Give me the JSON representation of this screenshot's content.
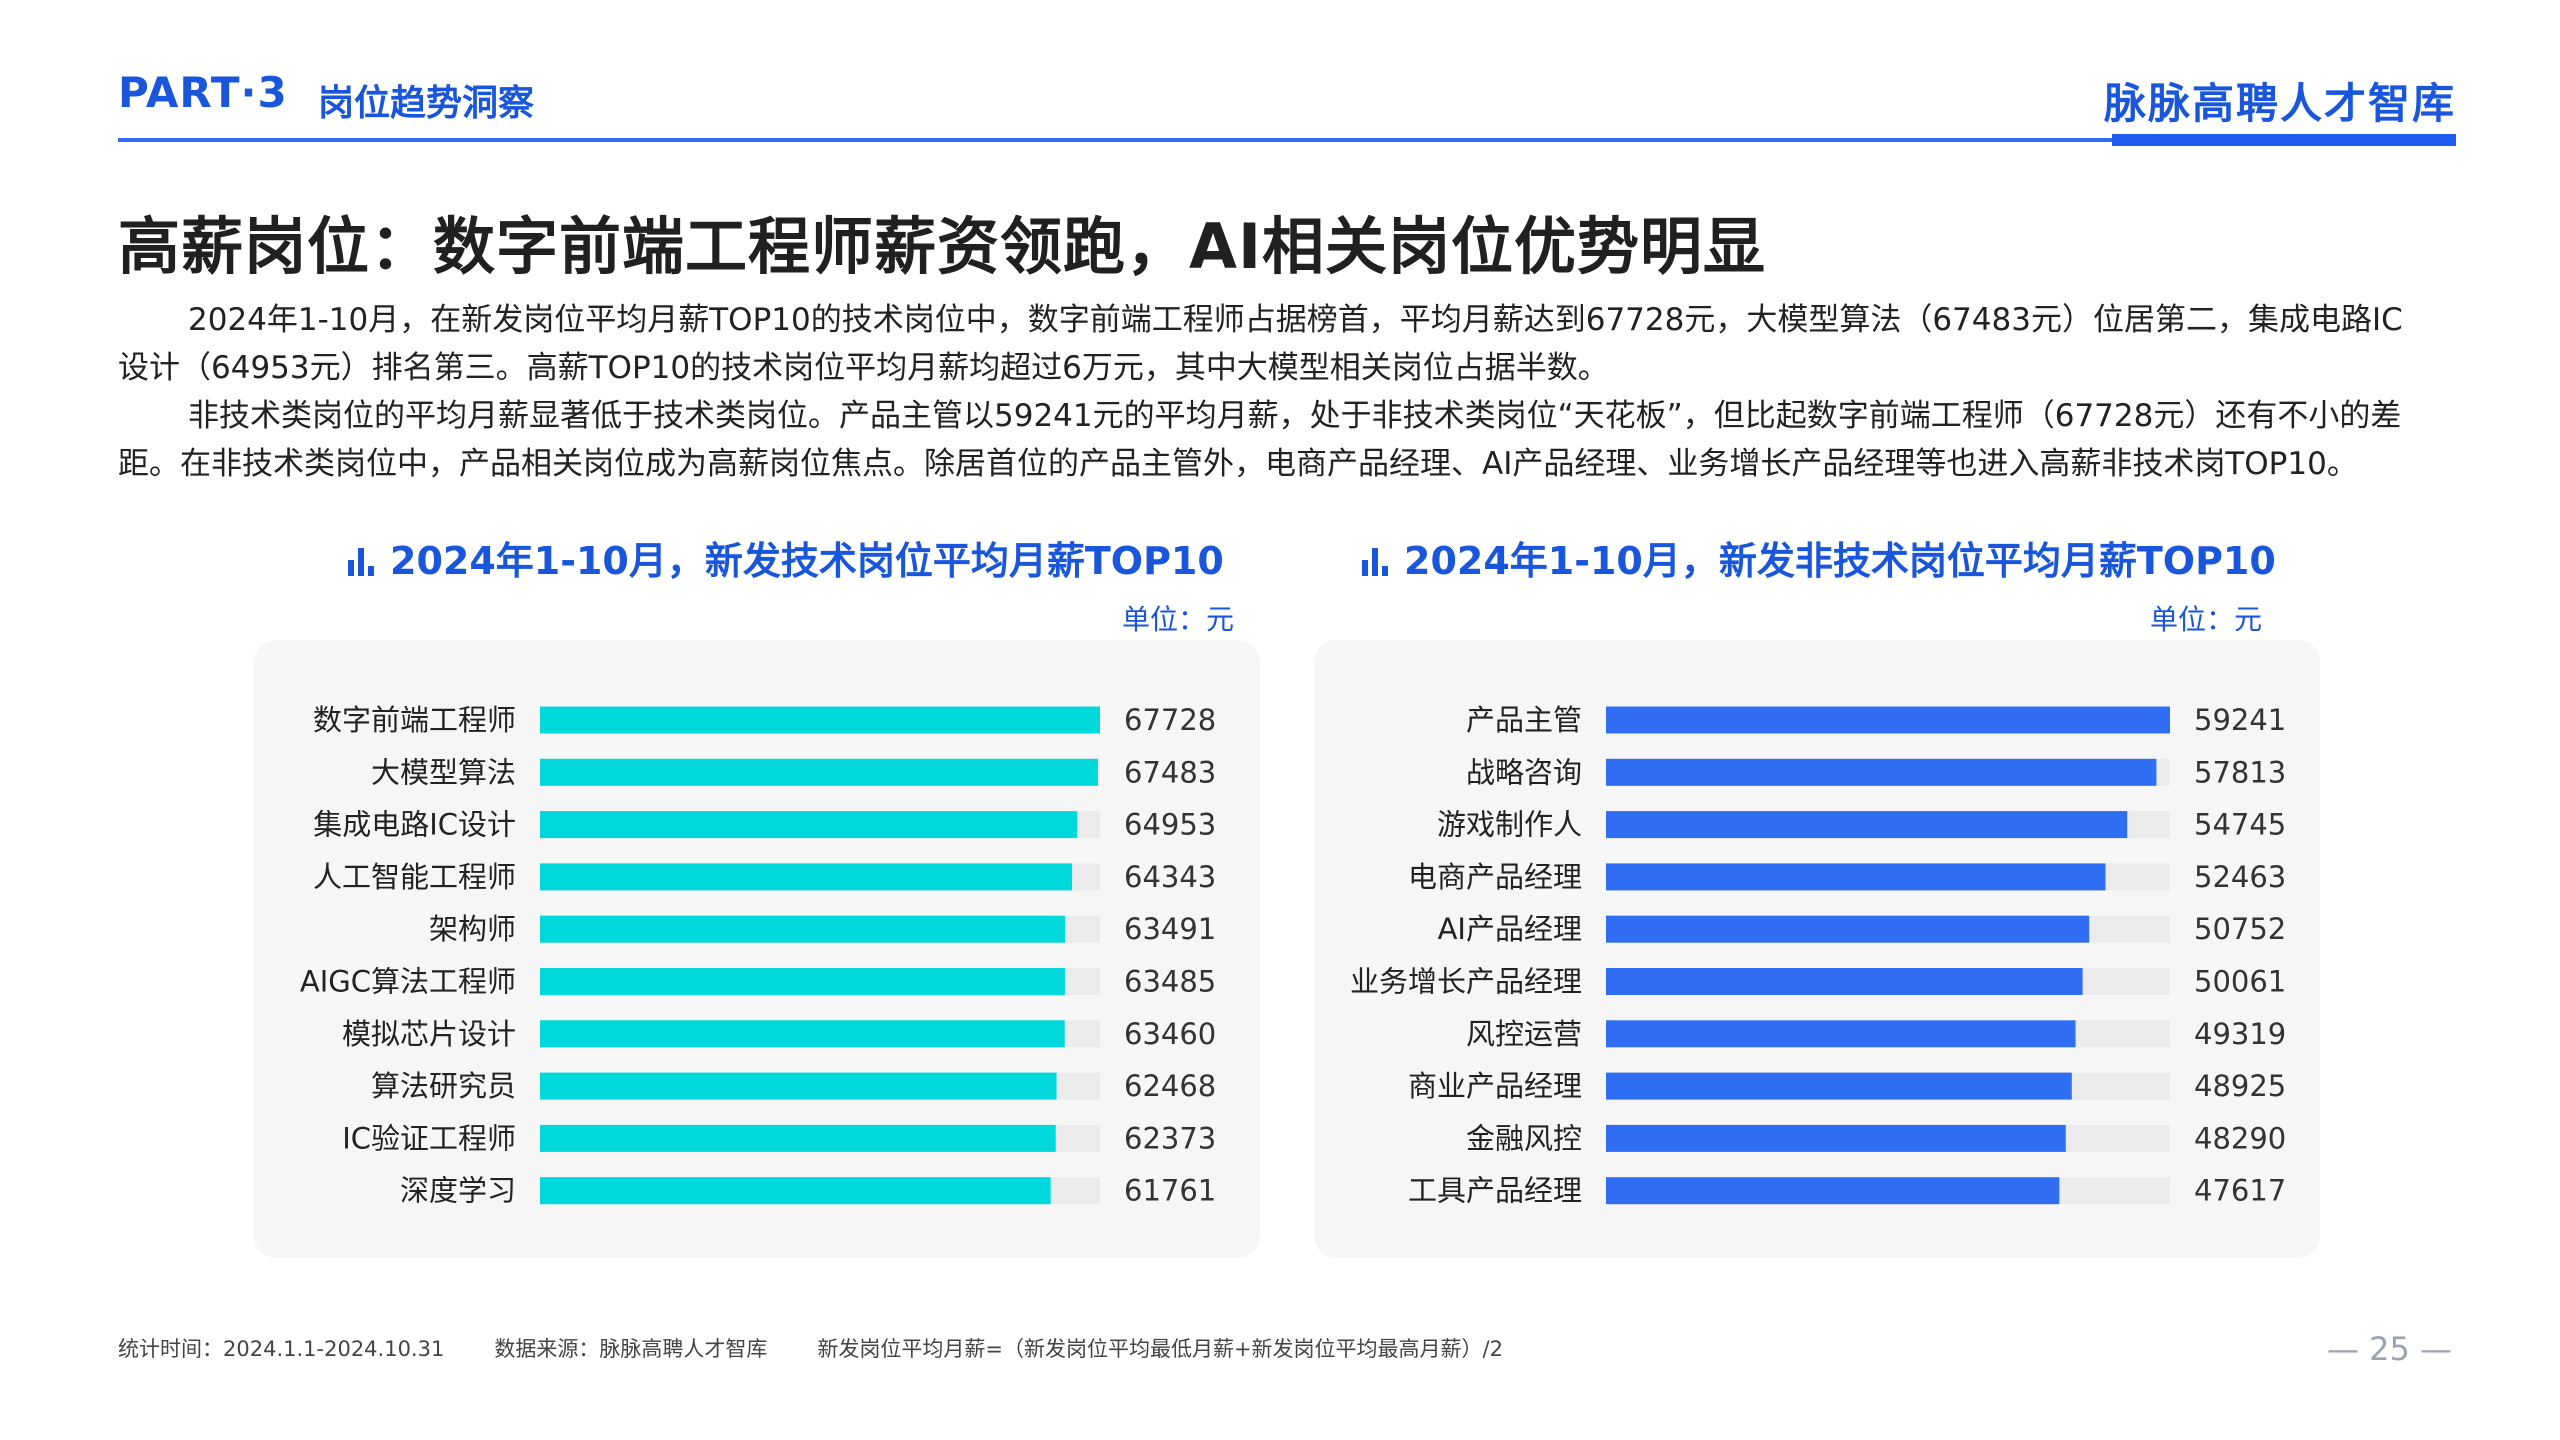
{
  "header": {
    "part": "PART·3",
    "section": "岗位趋势洞察",
    "brand": "脉脉高聘人才智库"
  },
  "headline": "高薪岗位：数字前端工程师薪资领跑，AI相关岗位优势明显",
  "paragraphs": [
    "2024年1-10月，在新发岗位平均月薪TOP10的技术岗位中，数字前端工程师占据榜首，平均月薪达到67728元，大模型算法（67483元）位居第二，集成电路IC设计（64953元）排名第三。高薪TOP10的技术岗位平均月薪均超过6万元，其中大模型相关岗位占据半数。",
    "非技术类岗位的平均月薪显著低于技术类岗位。产品主管以59241元的平均月薪，处于非技术类岗位“天花板”，但比起数字前端工程师（67728元）还有不小的差距。在非技术类岗位中，产品相关岗位成为高薪岗位焦点。除居首位的产品主管外，电商产品经理、AI产品经理、业务增长产品经理等也进入高薪非技术岗TOP10。"
  ],
  "chart_data": [
    {
      "type": "bar",
      "orientation": "horizontal",
      "title": "2024年1-10月，新发技术岗位平均月薪TOP10",
      "unit": "单位：元",
      "categories": [
        "数字前端工程师",
        "大模型算法",
        "集成电路IC设计",
        "人工智能工程师",
        "架构师",
        "AIGC算法工程师",
        "模拟芯片设计",
        "算法研究员",
        "IC验证工程师",
        "深度学习"
      ],
      "values": [
        67728,
        67483,
        64953,
        64343,
        63491,
        63485,
        63460,
        62468,
        62373,
        61761
      ],
      "xlim": [
        0,
        67728
      ],
      "color": "#00d8dc",
      "track_color": "#ebebeb",
      "grid": false
    },
    {
      "type": "bar",
      "orientation": "horizontal",
      "title": "2024年1-10月，新发非技术岗位平均月薪TOP10",
      "unit": "单位：元",
      "categories": [
        "产品主管",
        "战略咨询",
        "游戏制作人",
        "电商产品经理",
        "AI产品经理",
        "业务增长产品经理",
        "风控运营",
        "商业产品经理",
        "金融风控",
        "工具产品经理"
      ],
      "values": [
        59241,
        57813,
        54745,
        52463,
        50752,
        50061,
        49319,
        48925,
        48290,
        47617
      ],
      "xlim": [
        0,
        59241
      ],
      "color": "#2f6df2",
      "track_color": "#ebebeb",
      "grid": false
    }
  ],
  "footer": {
    "period": "统计时间：2024.1.1-2024.10.31",
    "source": "数据来源：脉脉高聘人才智库",
    "formula": "新发岗位平均月薪=（新发岗位平均最低月薪+新发岗位平均最高月薪）/2"
  },
  "page_number": "— 25 —"
}
